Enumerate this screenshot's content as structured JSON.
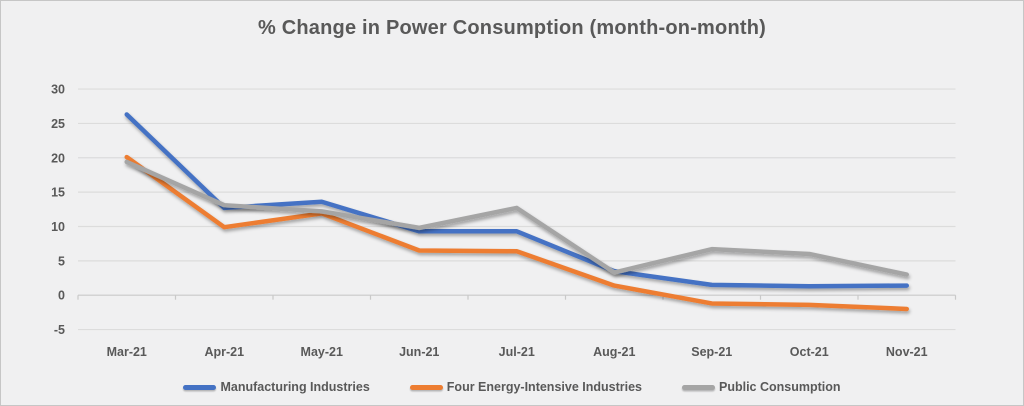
{
  "window": {
    "background_color": "#f0f0f1",
    "border_color": "#c6c6c6",
    "text_color": "#595959"
  },
  "chart_data": {
    "type": "line",
    "title": "% Change in Power Consumption (month-on-month)",
    "categories": [
      "Mar-21",
      "Apr-21",
      "May-21",
      "Jun-21",
      "Jul-21",
      "Aug-21",
      "Sep-21",
      "Oct-21",
      "Nov-21"
    ],
    "series": [
      {
        "name": "Manufacturing Industries",
        "color": "#4472C4",
        "values": [
          26.3,
          12.7,
          13.6,
          9.3,
          9.3,
          3.5,
          1.5,
          1.3,
          1.4
        ]
      },
      {
        "name": "Four Energy-Intensive Industries",
        "color": "#ED7D31",
        "values": [
          20.1,
          9.9,
          11.9,
          6.5,
          6.4,
          1.4,
          -1.2,
          -1.4,
          -2.0
        ]
      },
      {
        "name": "Public Consumption",
        "color": "#A5A5A5",
        "values": [
          19.4,
          13.1,
          12.2,
          9.8,
          12.7,
          3.3,
          6.7,
          6.0,
          3.0
        ]
      }
    ],
    "xlabel": "",
    "ylabel": "",
    "yticks": [
      30,
      25,
      20,
      15,
      10,
      5,
      0,
      -5
    ],
    "ylim": [
      -5,
      30
    ],
    "grid": true,
    "grid_color": "#dcdcdc",
    "axis_color": "#c9c9c9",
    "legend_position": "bottom"
  }
}
